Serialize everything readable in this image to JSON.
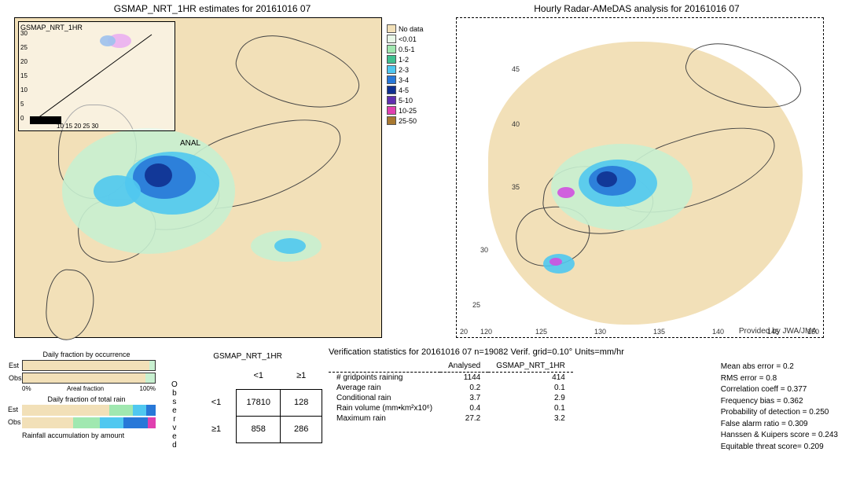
{
  "date": "20161016 07",
  "left_map": {
    "title": "GSMAP_NRT_1HR estimates for 20161016 07",
    "inset_label": "GSMAP_NRT_1HR",
    "inset_ticks": [
      "30",
      "25",
      "20",
      "15",
      "10",
      "5",
      "0"
    ],
    "inset_bottom": "10 15 20 25 30",
    "anal_label": "ANAL"
  },
  "right_map": {
    "title": "Hourly Radar-AMeDAS analysis for 20161016 07",
    "lat_ticks": [
      "45",
      "40",
      "35",
      "30",
      "25",
      "20"
    ],
    "lon_ticks": [
      "120",
      "125",
      "130",
      "135",
      "140",
      "145",
      "150"
    ],
    "provided": "Provided by JWA/JMA"
  },
  "legend": {
    "items": [
      {
        "label": "No data",
        "color": "#f2e0b8"
      },
      {
        "label": "<0.01",
        "color": "#e8f8e8"
      },
      {
        "label": "0.5-1",
        "color": "#a0e8b0"
      },
      {
        "label": "1-2",
        "color": "#40c090"
      },
      {
        "label": "2-3",
        "color": "#50c8f0"
      },
      {
        "label": "3-4",
        "color": "#2878d8"
      },
      {
        "label": "4-5",
        "color": "#103090"
      },
      {
        "label": "5-10",
        "color": "#6030b0"
      },
      {
        "label": "10-25",
        "color": "#e040b0"
      },
      {
        "label": "25-50",
        "color": "#a87830"
      }
    ]
  },
  "bars": {
    "occurrence_title": "Daily fraction by occurrence",
    "est_label": "Est",
    "obs_label": "Obs",
    "est_pct": 96,
    "obs_pct": 93,
    "pct_left": "0%",
    "pct_mid": "Areal fraction",
    "pct_right": "100%",
    "total_rain_title": "Daily fraction of total rain",
    "accum_label": "Rainfall accumulation by amount",
    "est_accum": [
      {
        "color": "#f2e0b8",
        "pct": 65
      },
      {
        "color": "#a0e8b0",
        "pct": 18
      },
      {
        "color": "#50c8f0",
        "pct": 10
      },
      {
        "color": "#2878d8",
        "pct": 7
      }
    ],
    "obs_accum": [
      {
        "color": "#f2e0b8",
        "pct": 38
      },
      {
        "color": "#a0e8b0",
        "pct": 20
      },
      {
        "color": "#50c8f0",
        "pct": 18
      },
      {
        "color": "#2878d8",
        "pct": 18
      },
      {
        "color": "#e040b0",
        "pct": 6
      }
    ]
  },
  "contingency": {
    "title": "GSMAP_NRT_1HR",
    "col1": "<1",
    "col2": "≥1",
    "row1": "<1",
    "row2": "≥1",
    "obs_vertical": "Observed",
    "cells": {
      "a": "17810",
      "b": "128",
      "c": "858",
      "d": "286"
    }
  },
  "verif": {
    "title": "Verification statistics for 20161016 07   n=19082   Verif. grid=0.10°   Units=mm/hr",
    "head_analysed": "Analysed",
    "head_model": "GSMAP_NRT_1HR",
    "rows": [
      {
        "lbl": "# gridpoints raining",
        "a": "1144",
        "b": "414"
      },
      {
        "lbl": "Average rain",
        "a": "0.2",
        "b": "0.1"
      },
      {
        "lbl": "Conditional rain",
        "a": "3.7",
        "b": "2.9"
      },
      {
        "lbl": "Rain volume (mm•km²x10⁶)",
        "a": "0.4",
        "b": "0.1"
      },
      {
        "lbl": "Maximum rain",
        "a": "27.2",
        "b": "3.2"
      }
    ],
    "scores": [
      "Mean abs error  =  0.2",
      "RMS error  =  0.8",
      "Correlation coeff  =  0.377",
      "Frequency bias  =  0.362",
      "Probability of detection  =  0.250",
      "False alarm ratio  =  0.309",
      "Hanssen & Kuipers score  =  0.243",
      "Equitable threat score=  0.209"
    ]
  }
}
